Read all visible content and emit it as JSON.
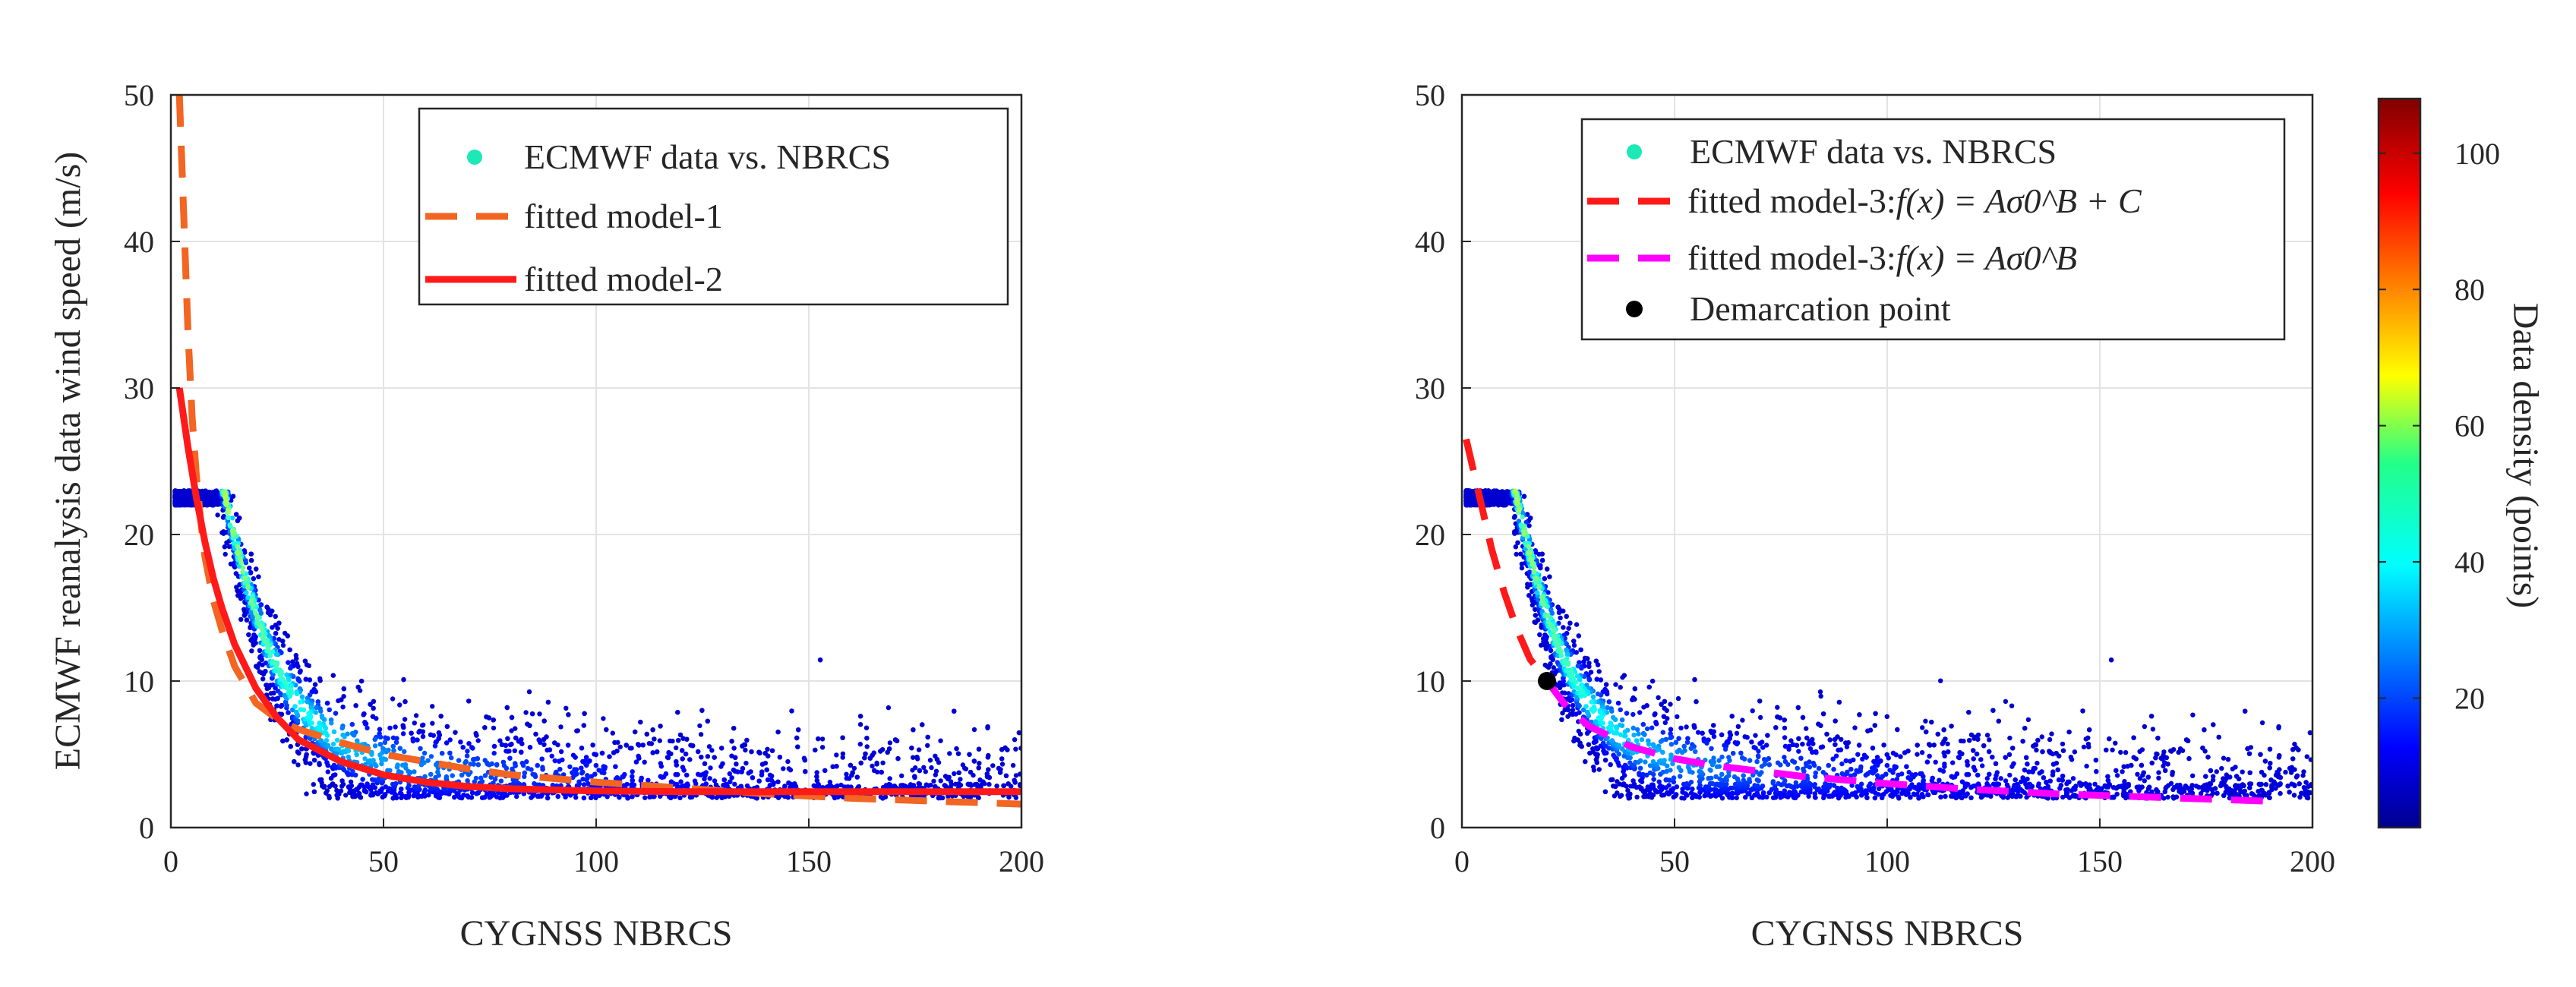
{
  "chart_data": [
    {
      "type": "scatter",
      "title": "",
      "xlabel": "CYGNSS NBRCS",
      "ylabel": "ECMWF reanalysis data wind speed (m/s)",
      "xlim": [
        0,
        200
      ],
      "ylim": [
        0,
        50
      ],
      "xticks": [
        "0",
        "50",
        "100",
        "150",
        "200"
      ],
      "yticks": [
        "0",
        "10",
        "20",
        "30",
        "40",
        "50"
      ],
      "grid": true,
      "legend_position": "top-right",
      "series": [
        {
          "name": "ECMWF data vs. NBRCS",
          "kind": "scatter-density",
          "color": "#1de9b6"
        },
        {
          "name": "fitted model-1",
          "kind": "dashed-line",
          "color": "#f26522",
          "x": [
            2,
            3,
            4,
            5,
            6,
            7,
            8,
            10,
            12,
            15,
            20,
            25,
            30,
            40,
            50,
            60,
            70,
            80,
            100,
            120,
            140,
            160,
            180,
            200
          ],
          "y": [
            50,
            42,
            34,
            28,
            24,
            21,
            18.5,
            15.5,
            13.5,
            11,
            8.5,
            7.4,
            6.7,
            5.8,
            5.0,
            4.5,
            4.0,
            3.6,
            3.1,
            2.7,
            2.3,
            2.0,
            1.8,
            1.6
          ]
        },
        {
          "name": "fitted model-2",
          "kind": "solid-line",
          "color": "#ff1a1a",
          "x": [
            2,
            4,
            6,
            8,
            10,
            12,
            15,
            20,
            25,
            30,
            40,
            50,
            60,
            70,
            80,
            100,
            120,
            150,
            200
          ],
          "y": [
            30,
            26,
            22.5,
            19.5,
            17,
            15,
            12.5,
            9.5,
            7.5,
            6.0,
            4.5,
            3.6,
            3.1,
            2.8,
            2.65,
            2.5,
            2.45,
            2.45,
            2.45
          ]
        }
      ]
    },
    {
      "type": "scatter",
      "title": "",
      "xlabel": "CYGNSS NBRCS",
      "ylabel": "",
      "xlim": [
        0,
        200
      ],
      "ylim": [
        0,
        50
      ],
      "xticks": [
        "0",
        "50",
        "100",
        "150",
        "200"
      ],
      "yticks": [
        "0",
        "10",
        "20",
        "30",
        "40",
        "50"
      ],
      "grid": true,
      "legend_position": "top-right",
      "series": [
        {
          "name": "ECMWF data vs. NBRCS",
          "kind": "scatter-density",
          "color": "#1de9b6"
        },
        {
          "name": "fitted model-3:",
          "formula": "f(x) = Aσ0^B + C",
          "kind": "dashed-line",
          "color": "#ff1a1a",
          "x": [
            1,
            3,
            5,
            7,
            10,
            13,
            16,
            20
          ],
          "y": [
            26.5,
            24,
            21.5,
            19,
            16,
            13.5,
            11.5,
            10
          ]
        },
        {
          "name": "fitted model-3:",
          "formula": "f(x) = Aσ0^B",
          "kind": "dashed-line",
          "color": "#ff00ff",
          "x": [
            20,
            25,
            30,
            40,
            50,
            60,
            80,
            100,
            120,
            140,
            160,
            190
          ],
          "y": [
            10,
            8.1,
            6.9,
            5.5,
            4.7,
            4.2,
            3.5,
            3.0,
            2.6,
            2.3,
            2.1,
            1.8
          ]
        },
        {
          "name": "Demarcation point",
          "kind": "point",
          "color": "#000000",
          "x": [
            20
          ],
          "y": [
            10
          ]
        }
      ],
      "colorbar": {
        "label": "Data density (points)",
        "range": [
          1,
          108
        ],
        "ticks": [
          "20",
          "40",
          "60",
          "80",
          "100"
        ],
        "colormap": "jet"
      }
    }
  ]
}
